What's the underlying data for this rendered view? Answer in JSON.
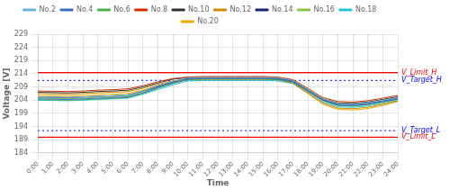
{
  "chart_data": {
    "type": "line",
    "xlabel": "Time",
    "ylabel": "Voltage [V]",
    "categories": [
      "0:00",
      "1:00",
      "2:00",
      "3:00",
      "4:00",
      "5:00",
      "6:00",
      "7:00",
      "8:00",
      "9:00",
      "10:00",
      "11:00",
      "12:00",
      "13:00",
      "14:00",
      "15:00",
      "16:00",
      "17:00",
      "18:00",
      "19:00",
      "20:00",
      "21:00",
      "22:00",
      "23:00",
      "24:00"
    ],
    "ylim": [
      184,
      229
    ],
    "yticks": [
      184,
      189,
      194,
      199,
      204,
      209,
      214,
      219,
      224,
      229
    ],
    "grid": true,
    "legend": "top",
    "annotations": [
      {
        "text": "V_Limit_H",
        "y": 214.5,
        "color": "red",
        "line_style": "solid"
      },
      {
        "text": "V_Target_H",
        "y": 211.5,
        "color": "blue",
        "line_style": "dotted"
      },
      {
        "text": "V_Target_L",
        "y": 192.5,
        "color": "blue",
        "line_style": "dotted"
      },
      {
        "text": "V_Limit_L",
        "y": 190.0,
        "color": "red",
        "line_style": "solid"
      }
    ],
    "series": [
      {
        "name": "No.2",
        "color": "#6bb8d4",
        "values": [
          205.3,
          205.2,
          205.1,
          205.3,
          205.5,
          205.7,
          206.0,
          207.5,
          209.5,
          211.2,
          212.5,
          212.6,
          212.6,
          212.6,
          212.6,
          212.6,
          212.5,
          211.5,
          208.0,
          204.5,
          202.8,
          202.5,
          203.0,
          204.0,
          205.0
        ]
      },
      {
        "name": "No.4",
        "color": "#3a6fc4",
        "values": [
          204.5,
          204.4,
          204.3,
          204.5,
          204.8,
          205.0,
          205.3,
          206.8,
          208.8,
          210.5,
          212.0,
          212.2,
          212.2,
          212.2,
          212.2,
          212.2,
          212.0,
          211.0,
          207.5,
          204.0,
          202.2,
          202.0,
          202.5,
          203.5,
          204.5
        ]
      },
      {
        "name": "No.6",
        "color": "#4caf50",
        "values": [
          204.2,
          204.1,
          204.0,
          204.2,
          204.5,
          204.7,
          205.0,
          206.5,
          208.5,
          210.3,
          211.8,
          212.0,
          212.0,
          212.0,
          212.0,
          212.0,
          211.8,
          210.8,
          207.3,
          203.8,
          202.0,
          201.8,
          202.3,
          203.3,
          204.3
        ]
      },
      {
        "name": "No.8",
        "color": "#cc3300",
        "values": [
          207.5,
          207.4,
          207.3,
          207.5,
          207.8,
          208.0,
          208.3,
          209.5,
          211.0,
          212.2,
          212.8,
          213.0,
          213.0,
          213.0,
          213.0,
          213.0,
          212.8,
          211.8,
          208.5,
          205.0,
          203.5,
          203.3,
          203.8,
          204.8,
          205.8
        ]
      },
      {
        "name": "No.10",
        "color": "#333333",
        "values": [
          207.0,
          206.9,
          206.8,
          207.0,
          207.3,
          207.5,
          207.8,
          209.0,
          210.5,
          212.0,
          212.5,
          212.6,
          212.6,
          212.6,
          212.6,
          212.6,
          212.5,
          211.5,
          208.0,
          204.5,
          203.0,
          202.8,
          203.3,
          204.3,
          205.3
        ]
      },
      {
        "name": "No.12",
        "color": "#cc8800",
        "values": [
          206.5,
          206.4,
          206.3,
          206.5,
          206.8,
          207.0,
          207.3,
          208.5,
          210.0,
          211.3,
          211.8,
          212.0,
          212.0,
          212.0,
          212.0,
          212.0,
          211.8,
          210.5,
          206.8,
          203.0,
          201.0,
          200.8,
          201.3,
          202.5,
          203.8
        ]
      },
      {
        "name": "No.14",
        "color": "#1a237e",
        "values": [
          205.2,
          205.1,
          205.0,
          205.2,
          205.5,
          205.7,
          206.0,
          207.5,
          209.2,
          211.0,
          212.2,
          212.4,
          212.4,
          212.4,
          212.4,
          212.4,
          212.2,
          211.2,
          207.8,
          204.2,
          202.5,
          202.3,
          202.8,
          203.8,
          204.8
        ]
      },
      {
        "name": "No.16",
        "color": "#8bc34a",
        "values": [
          204.8,
          204.7,
          204.6,
          204.8,
          205.1,
          205.3,
          205.6,
          207.1,
          208.8,
          210.6,
          211.9,
          212.1,
          212.1,
          212.1,
          212.1,
          212.1,
          211.9,
          210.9,
          207.4,
          203.8,
          202.0,
          201.8,
          202.3,
          203.3,
          204.3
        ]
      },
      {
        "name": "No.18",
        "color": "#26c6da",
        "values": [
          204.0,
          203.9,
          203.8,
          204.0,
          204.3,
          204.5,
          204.8,
          206.3,
          208.0,
          209.8,
          211.3,
          211.5,
          211.5,
          211.5,
          211.5,
          211.5,
          211.3,
          210.3,
          206.8,
          203.2,
          201.5,
          201.3,
          201.8,
          202.8,
          203.8
        ]
      },
      {
        "name": "No.20",
        "color": "#f0a800",
        "values": [
          205.8,
          205.7,
          205.6,
          205.8,
          206.1,
          206.3,
          206.6,
          207.8,
          209.5,
          211.0,
          211.7,
          211.9,
          211.9,
          211.9,
          211.9,
          211.9,
          211.7,
          210.4,
          206.5,
          202.5,
          200.5,
          200.3,
          200.8,
          202.0,
          203.5
        ]
      }
    ]
  }
}
